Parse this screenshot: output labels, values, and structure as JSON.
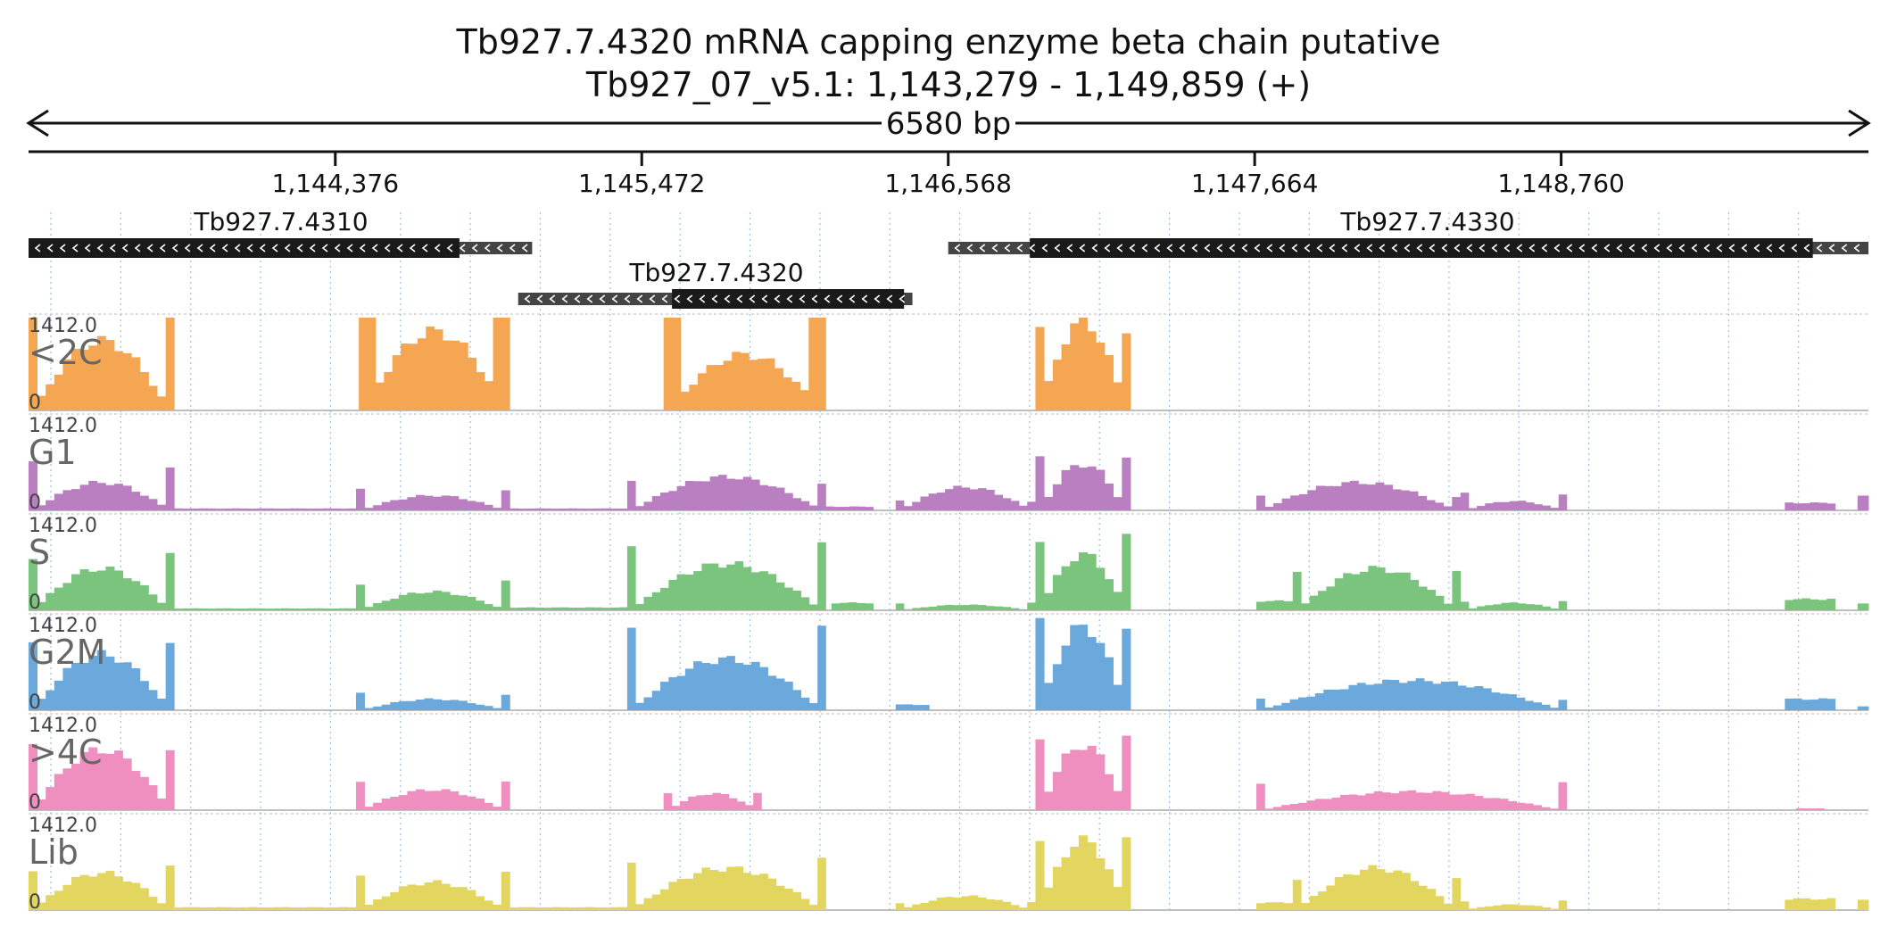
{
  "header": {
    "title": "Tb927.7.4320  mRNA capping enzyme  beta chain  putative",
    "location": "Tb927_07_v5.1: 1,143,279 - 1,149,859 (+)",
    "span": "6580 bp"
  },
  "chart_data": {
    "type": "area",
    "region": {
      "chrom": "Tb927_07_v5.1",
      "start": 1143279,
      "end": 1149859
    },
    "x_ticks": [
      {
        "pos": 1144376,
        "label": "1,144,376"
      },
      {
        "pos": 1145472,
        "label": "1,145,472"
      },
      {
        "pos": 1146568,
        "label": "1,146,568"
      },
      {
        "pos": 1147664,
        "label": "1,147,664"
      },
      {
        "pos": 1148760,
        "label": "1,148,760"
      }
    ],
    "genes": [
      {
        "name": "Tb927.7.4310",
        "strand": "-",
        "start": 1143279,
        "end": 1145080,
        "cds_start": 1143279,
        "cds_end": 1144820,
        "row": 0
      },
      {
        "name": "Tb927.7.4320",
        "strand": "-",
        "start": 1145030,
        "end": 1146440,
        "cds_start": 1145580,
        "cds_end": 1146410,
        "row": 1
      },
      {
        "name": "Tb927.7.4330",
        "strand": "-",
        "start": 1146568,
        "end": 1149859,
        "cds_start": 1146860,
        "cds_end": 1149660,
        "row": 0
      }
    ],
    "track_max_label": "1412.0",
    "track_min_label": "0",
    "y_max": 1412,
    "bin_size": 30,
    "tracks": [
      {
        "name": "<2C",
        "color": "#f5a652",
        "segments": [
          {
            "start": 1143279,
            "end": 1143800,
            "shape": "hump",
            "edge": 1.3,
            "peak": 0.75
          },
          {
            "start": 1144460,
            "end": 1145000,
            "shape": "u",
            "edge": 1.3,
            "peak": 0.85
          },
          {
            "start": 1145550,
            "end": 1146130,
            "shape": "u",
            "edge": 1.3,
            "peak": 0.6
          },
          {
            "start": 1146880,
            "end": 1147220,
            "shape": "hump",
            "edge": 0.9,
            "peak": 0.95
          }
        ]
      },
      {
        "name": "G1",
        "color": "#b97fc0",
        "segments": [
          {
            "start": 1143279,
            "end": 1143800,
            "shape": "hump",
            "edge": 0.5,
            "peak": 0.3
          },
          {
            "start": 1143800,
            "end": 1144450,
            "shape": "flat",
            "edge": 0.02,
            "peak": 0.02
          },
          {
            "start": 1144450,
            "end": 1145000,
            "shape": "hump",
            "edge": 0.22,
            "peak": 0.16
          },
          {
            "start": 1145000,
            "end": 1145420,
            "shape": "flat",
            "edge": 0.02,
            "peak": 0.02
          },
          {
            "start": 1145420,
            "end": 1146130,
            "shape": "hump",
            "edge": 0.3,
            "peak": 0.36
          },
          {
            "start": 1146130,
            "end": 1146300,
            "shape": "flat",
            "edge": 0.04,
            "peak": 0.04
          },
          {
            "start": 1146380,
            "end": 1146880,
            "shape": "hump",
            "edge": 0.1,
            "peak": 0.25
          },
          {
            "start": 1146880,
            "end": 1147220,
            "shape": "hump",
            "edge": 0.55,
            "peak": 0.5
          },
          {
            "start": 1147670,
            "end": 1148400,
            "shape": "hump",
            "edge": 0.15,
            "peak": 0.3
          },
          {
            "start": 1148400,
            "end": 1148780,
            "shape": "hump",
            "edge": 0.18,
            "peak": 0.1
          },
          {
            "start": 1149560,
            "end": 1149740,
            "shape": "flat",
            "edge": 0.12,
            "peak": 0.08
          },
          {
            "start": 1149820,
            "end": 1149859,
            "shape": "flat",
            "edge": 0.15,
            "peak": 0.15
          }
        ]
      },
      {
        "name": "S",
        "color": "#7bc47e",
        "segments": [
          {
            "start": 1143279,
            "end": 1143800,
            "shape": "hump",
            "edge": 0.6,
            "peak": 0.45
          },
          {
            "start": 1143800,
            "end": 1144450,
            "shape": "flat",
            "edge": 0.02,
            "peak": 0.02
          },
          {
            "start": 1144450,
            "end": 1145000,
            "shape": "hump",
            "edge": 0.3,
            "peak": 0.2
          },
          {
            "start": 1145000,
            "end": 1145420,
            "shape": "flat",
            "edge": 0.03,
            "peak": 0.03
          },
          {
            "start": 1145420,
            "end": 1146130,
            "shape": "hump",
            "edge": 0.75,
            "peak": 0.5
          },
          {
            "start": 1146150,
            "end": 1146300,
            "shape": "flat",
            "edge": 0.08,
            "peak": 0.08
          },
          {
            "start": 1146380,
            "end": 1146880,
            "shape": "hump",
            "edge": 0.08,
            "peak": 0.06
          },
          {
            "start": 1146880,
            "end": 1147220,
            "shape": "hump",
            "edge": 0.8,
            "peak": 0.6
          },
          {
            "start": 1147670,
            "end": 1147800,
            "shape": "flat",
            "edge": 0.1,
            "peak": 0.1
          },
          {
            "start": 1147800,
            "end": 1148400,
            "shape": "hump",
            "edge": 0.45,
            "peak": 0.45
          },
          {
            "start": 1148400,
            "end": 1148780,
            "shape": "hump",
            "edge": 0.1,
            "peak": 0.08
          },
          {
            "start": 1149560,
            "end": 1149740,
            "shape": "flat",
            "edge": 0.12,
            "peak": 0.12
          },
          {
            "start": 1149820,
            "end": 1149859,
            "shape": "flat",
            "edge": 0.08,
            "peak": 0.08
          }
        ]
      },
      {
        "name": "G2M",
        "color": "#6ba8dc",
        "segments": [
          {
            "start": 1143279,
            "end": 1143800,
            "shape": "hump",
            "edge": 0.7,
            "peak": 0.6
          },
          {
            "start": 1144450,
            "end": 1145000,
            "shape": "hump",
            "edge": 0.18,
            "peak": 0.12
          },
          {
            "start": 1145420,
            "end": 1146130,
            "shape": "hump",
            "edge": 0.85,
            "peak": 0.55
          },
          {
            "start": 1146380,
            "end": 1146500,
            "shape": "flat",
            "edge": 0.06,
            "peak": 0.06
          },
          {
            "start": 1146880,
            "end": 1147220,
            "shape": "hump",
            "edge": 0.95,
            "peak": 0.9
          },
          {
            "start": 1147670,
            "end": 1148780,
            "shape": "hump",
            "edge": 0.12,
            "peak": 0.32
          },
          {
            "start": 1149560,
            "end": 1149740,
            "shape": "flat",
            "edge": 0.12,
            "peak": 0.12
          },
          {
            "start": 1149820,
            "end": 1149859,
            "shape": "flat",
            "edge": 0.04,
            "peak": 0.04
          }
        ]
      },
      {
        "name": ">4C",
        "color": "#ef8fbf",
        "segments": [
          {
            "start": 1143279,
            "end": 1143800,
            "shape": "hump",
            "edge": 0.7,
            "peak": 0.65
          },
          {
            "start": 1144450,
            "end": 1145000,
            "shape": "hump",
            "edge": 0.3,
            "peak": 0.22
          },
          {
            "start": 1145550,
            "end": 1145900,
            "shape": "hump",
            "edge": 0.18,
            "peak": 0.18
          },
          {
            "start": 1146880,
            "end": 1147220,
            "shape": "hump",
            "edge": 0.75,
            "peak": 0.7
          },
          {
            "start": 1147670,
            "end": 1148780,
            "shape": "hump",
            "edge": 0.28,
            "peak": 0.2
          },
          {
            "start": 1149600,
            "end": 1149700,
            "shape": "flat",
            "edge": 0.02,
            "peak": 0.02
          }
        ]
      },
      {
        "name": "Lib",
        "color": "#e2d560",
        "segments": [
          {
            "start": 1143279,
            "end": 1143800,
            "shape": "hump",
            "edge": 0.45,
            "peak": 0.4
          },
          {
            "start": 1143800,
            "end": 1144450,
            "shape": "flat",
            "edge": 0.03,
            "peak": 0.03
          },
          {
            "start": 1144450,
            "end": 1145000,
            "shape": "hump",
            "edge": 0.4,
            "peak": 0.3
          },
          {
            "start": 1145000,
            "end": 1145420,
            "shape": "flat",
            "edge": 0.03,
            "peak": 0.03
          },
          {
            "start": 1145420,
            "end": 1146130,
            "shape": "hump",
            "edge": 0.55,
            "peak": 0.45
          },
          {
            "start": 1146380,
            "end": 1146880,
            "shape": "hump",
            "edge": 0.08,
            "peak": 0.15
          },
          {
            "start": 1146880,
            "end": 1147220,
            "shape": "hump",
            "edge": 0.8,
            "peak": 0.75
          },
          {
            "start": 1147670,
            "end": 1147800,
            "shape": "flat",
            "edge": 0.08,
            "peak": 0.08
          },
          {
            "start": 1147800,
            "end": 1148400,
            "shape": "hump",
            "edge": 0.35,
            "peak": 0.45
          },
          {
            "start": 1148400,
            "end": 1148780,
            "shape": "hump",
            "edge": 0.1,
            "peak": 0.06
          },
          {
            "start": 1149560,
            "end": 1149740,
            "shape": "flat",
            "edge": 0.12,
            "peak": 0.12
          },
          {
            "start": 1149820,
            "end": 1149859,
            "shape": "flat",
            "edge": 0.12,
            "peak": 0.12
          }
        ]
      }
    ]
  }
}
